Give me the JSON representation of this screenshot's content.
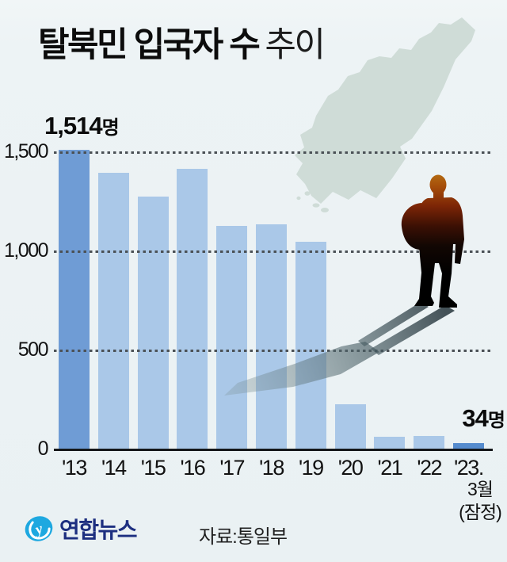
{
  "title": {
    "main": "탈북민 입국자 수",
    "sub": "추이"
  },
  "chart_data": {
    "type": "bar",
    "title": "탈북민 입국자 수 추이",
    "categories": [
      "'13",
      "'14",
      "'15",
      "'16",
      "'17",
      "'18",
      "'19",
      "'20",
      "'21",
      "'22",
      "'23."
    ],
    "values": [
      1514,
      1397,
      1275,
      1418,
      1127,
      1137,
      1047,
      229,
      63,
      67,
      34
    ],
    "unit": "명",
    "ylim": [
      0,
      1500
    ],
    "yticks": [
      {
        "label": "0",
        "value": 0
      },
      {
        "label": "500",
        "value": 500
      },
      {
        "label": "1,000",
        "value": 1000
      },
      {
        "label": "1,500",
        "value": 1500
      }
    ],
    "gridline_values": [
      500,
      1000,
      1500
    ],
    "grid": "dotted-horizontal",
    "annotations": [
      {
        "value_text": "1,514",
        "unit": "명",
        "bar_index": 0
      },
      {
        "value_text": "34",
        "unit": "명",
        "bar_index": 10
      }
    ],
    "last_category_note": [
      "3월",
      "(잠정)"
    ],
    "colors": {
      "bar_first": "#6f9cd5",
      "bar_default": "#aac8e8",
      "bar_last": "#568cce"
    }
  },
  "art": {
    "map_color": "#cfdcd7",
    "figure": "defector-silhouette",
    "map": "north-korea-map"
  },
  "footer": {
    "logo_text": "연합뉴스",
    "logo_icon": "yonhap-logo-icon",
    "source": "자료:통일부"
  },
  "theme": {
    "background": "#edf3f5",
    "text": "#111111",
    "navy": "#1d2f80",
    "cyan": "#1ea8e0",
    "dot_grid": "#4b5156"
  }
}
